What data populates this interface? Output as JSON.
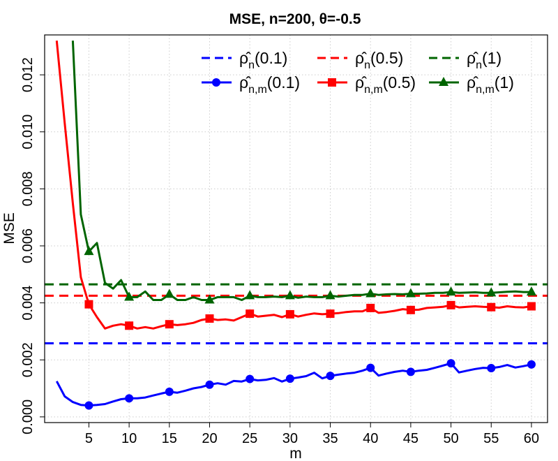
{
  "chart_data": {
    "type": "line",
    "title": "MSE, n=200, θ=-0.5",
    "xlabel": "m",
    "ylabel": "MSE",
    "xlim": [
      -0.5,
      62
    ],
    "ylim": [
      -0.0002,
      0.0134
    ],
    "x_ticks": [
      5,
      10,
      15,
      20,
      25,
      30,
      35,
      40,
      45,
      50,
      55,
      60
    ],
    "y_ticks": [
      0.0,
      0.002,
      0.004,
      0.006,
      0.008,
      0.01,
      0.012
    ],
    "y_tick_labels": [
      "0.000",
      "0.002",
      "0.004",
      "0.006",
      "0.008",
      "0.010",
      "0.012"
    ],
    "grid": true,
    "legend_position": "top-right",
    "x": [
      1,
      2,
      3,
      4,
      5,
      6,
      7,
      8,
      9,
      10,
      11,
      12,
      13,
      14,
      15,
      16,
      17,
      18,
      19,
      20,
      21,
      22,
      23,
      24,
      25,
      26,
      27,
      28,
      29,
      30,
      31,
      32,
      33,
      34,
      35,
      36,
      37,
      38,
      39,
      40,
      41,
      42,
      43,
      44,
      45,
      46,
      47,
      48,
      49,
      50,
      51,
      52,
      53,
      54,
      55,
      56,
      57,
      58,
      59,
      60
    ],
    "reference_lines": [
      {
        "name": "ρ̂n(0.1)",
        "label_main": "ρ̂",
        "label_sub": "n",
        "label_arg": "(0.1)",
        "value": 0.00258,
        "color": "#0000ff",
        "dash": "dashed"
      },
      {
        "name": "ρ̂n(0.5)",
        "label_main": "ρ̂",
        "label_sub": "n",
        "label_arg": "(0.5)",
        "value": 0.00425,
        "color": "#ff0000",
        "dash": "dashed"
      },
      {
        "name": "ρ̂n(1)",
        "label_main": "ρ̂",
        "label_sub": "n",
        "label_arg": "(1)",
        "value": 0.00465,
        "color": "#006400",
        "dash": "dashed"
      }
    ],
    "series": [
      {
        "name": "ρ̂n,m(0.1)",
        "label_main": "ρ̂",
        "label_sub": "n,m",
        "label_arg": "(0.1)",
        "color": "#0000ff",
        "marker": "circle",
        "values": [
          0.00125,
          0.00072,
          0.00052,
          0.00042,
          0.0004,
          0.00042,
          0.00045,
          0.00054,
          0.00062,
          0.00065,
          0.00065,
          0.00068,
          0.00075,
          0.00082,
          0.00088,
          0.00085,
          0.00092,
          0.001,
          0.00105,
          0.00113,
          0.00118,
          0.00113,
          0.00126,
          0.00124,
          0.00133,
          0.00128,
          0.0013,
          0.00136,
          0.00124,
          0.00134,
          0.00138,
          0.00143,
          0.00155,
          0.00135,
          0.00144,
          0.00148,
          0.00152,
          0.00155,
          0.00162,
          0.00172,
          0.00145,
          0.00152,
          0.00158,
          0.00162,
          0.00158,
          0.00162,
          0.00165,
          0.00172,
          0.0018,
          0.00188,
          0.00156,
          0.00162,
          0.00168,
          0.00172,
          0.00171,
          0.00175,
          0.00182,
          0.00173,
          0.00178,
          0.00184
        ]
      },
      {
        "name": "ρ̂n,m(0.5)",
        "label_main": "ρ̂",
        "label_sub": "n,m",
        "label_arg": "(0.5)",
        "color": "#ff0000",
        "marker": "square",
        "values": [
          0.0132,
          0.0103,
          0.0075,
          0.0049,
          0.00395,
          0.0035,
          0.0031,
          0.0032,
          0.00325,
          0.0032,
          0.0031,
          0.00315,
          0.0031,
          0.00318,
          0.00325,
          0.00322,
          0.00325,
          0.0033,
          0.0034,
          0.00345,
          0.0034,
          0.00342,
          0.00338,
          0.0035,
          0.00362,
          0.00352,
          0.00355,
          0.00358,
          0.0035,
          0.0036,
          0.00352,
          0.00358,
          0.00363,
          0.0036,
          0.00362,
          0.00364,
          0.00368,
          0.0037,
          0.0037,
          0.00382,
          0.00365,
          0.00368,
          0.00372,
          0.00378,
          0.00375,
          0.00376,
          0.00382,
          0.00384,
          0.00386,
          0.00392,
          0.00384,
          0.00386,
          0.00388,
          0.00386,
          0.00385,
          0.00383,
          0.00388,
          0.00385,
          0.00384,
          0.00388
        ]
      },
      {
        "name": "ρ̂n,m(1)",
        "label_main": "ρ̂",
        "label_sub": "n,m",
        "label_arg": "(1)",
        "color": "#006400",
        "marker": "triangle",
        "values": [
          null,
          null,
          0.0132,
          0.0071,
          0.0058,
          0.0061,
          0.0047,
          0.0045,
          0.0048,
          0.0042,
          0.0042,
          0.0044,
          0.0041,
          0.0041,
          0.0043,
          0.0041,
          0.0041,
          0.0042,
          0.0041,
          0.0041,
          0.0042,
          0.0042,
          0.0042,
          0.0041,
          0.00425,
          0.0042,
          0.0042,
          0.00422,
          0.0042,
          0.00425,
          0.00418,
          0.00422,
          0.0042,
          0.0042,
          0.00425,
          0.00422,
          0.00425,
          0.00428,
          0.00428,
          0.00432,
          0.00428,
          0.0043,
          0.00431,
          0.0043,
          0.00432,
          0.00432,
          0.00433,
          0.00435,
          0.00435,
          0.00438,
          0.00435,
          0.00436,
          0.00437,
          0.00435,
          0.00435,
          0.00437,
          0.00439,
          0.0044,
          0.00438,
          0.00438
        ]
      }
    ]
  }
}
